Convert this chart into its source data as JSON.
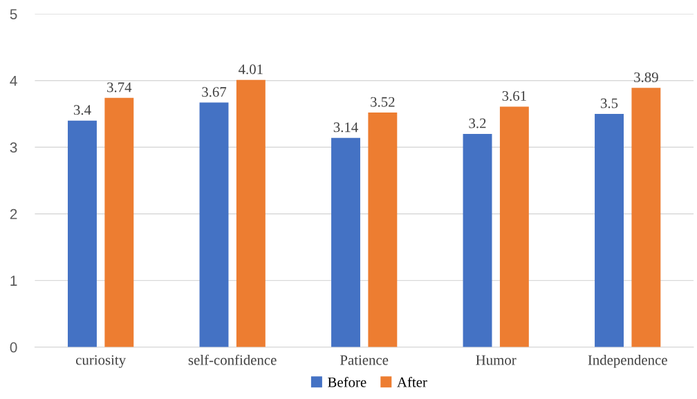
{
  "chart_data": {
    "type": "bar",
    "categories": [
      "curiosity",
      "self-confidence",
      "Patience",
      "Humor",
      "Independence"
    ],
    "series": [
      {
        "name": "Before",
        "color": "#4472c4",
        "values": [
          3.4,
          3.67,
          3.14,
          3.2,
          3.5
        ]
      },
      {
        "name": "After",
        "color": "#ed7d31",
        "values": [
          3.74,
          4.01,
          3.52,
          3.61,
          3.89
        ]
      }
    ],
    "ylim": [
      0,
      5
    ],
    "yticks": [
      0,
      1,
      2,
      3,
      4,
      5
    ],
    "grid": "y",
    "legend": "bottom",
    "data_labels": true
  }
}
